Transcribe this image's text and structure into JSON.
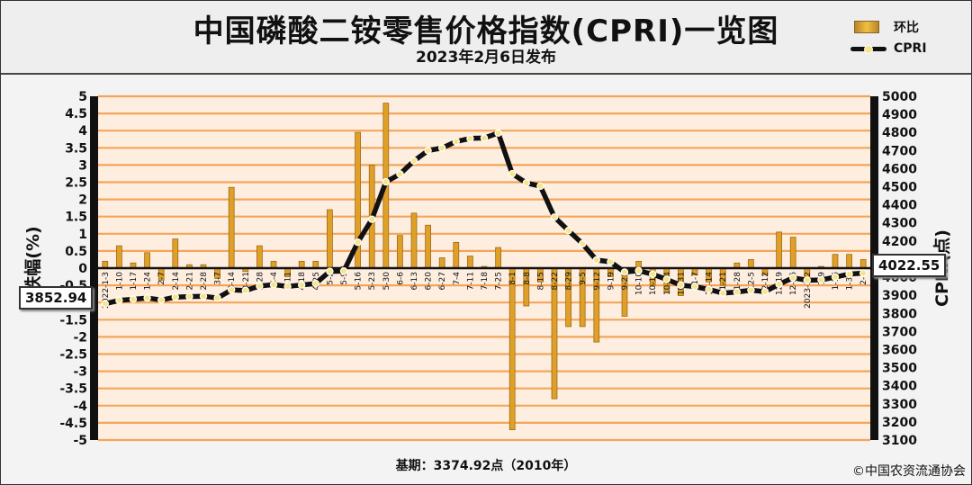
{
  "header": {
    "title": "中国磷酸二铵零售价格指数(CPRI)一览图",
    "subtitle": "2023年2月6日发布"
  },
  "legend": {
    "bar_label": "环比",
    "line_label": "CPRI"
  },
  "footer": {
    "base": "基期：3374.92点（2010年）",
    "copyright": "©中国农资流通协会"
  },
  "callouts": {
    "first_value": "3852.94",
    "last_value": "4022.55"
  },
  "colors": {
    "bar": "#e0a028",
    "line": "#111111",
    "marker": "#f7e58a",
    "grid": "#f4a55a",
    "plot_bg": "#fdeee0"
  },
  "chart_data": {
    "type": "bar",
    "title": "中国磷酸二铵零售价格指数(CPRI)一览图",
    "categories": [
      "2022-1-3",
      "1-10",
      "1-17",
      "1-24",
      "2-7",
      "2-14",
      "2-21",
      "2-28",
      "3-7",
      "3-14",
      "3-21",
      "3-28",
      "4-4",
      "4-11",
      "4-18",
      "4-25",
      "5-2",
      "5-9",
      "5-16",
      "5-23",
      "5-30",
      "6-6",
      "6-13",
      "6-20",
      "6-27",
      "7-4",
      "7-11",
      "7-18",
      "7-25",
      "8-1",
      "8-8",
      "8-15",
      "8-22",
      "8-29",
      "9-5",
      "9-12",
      "9-19",
      "9-26",
      "10-10",
      "10-17",
      "10-24",
      "10-31",
      "11-7",
      "11-14",
      "11-21",
      "11-28",
      "12-5",
      "12-12",
      "12-19",
      "12-26",
      "2023-1-2",
      "1-9",
      "1-16",
      "1-30",
      "2-6"
    ],
    "series": [
      {
        "name": "环比",
        "type": "bar",
        "axis": "left",
        "values": [
          0.2,
          0.65,
          0.15,
          0.45,
          -0.35,
          0.85,
          0.1,
          0.1,
          -0.3,
          2.35,
          -0.1,
          0.65,
          0.2,
          -0.25,
          0.2,
          0.2,
          1.7,
          0.05,
          3.95,
          3.0,
          4.8,
          0.95,
          1.6,
          1.25,
          0.3,
          0.75,
          0.35,
          0.05,
          0.6,
          -4.7,
          -1.1,
          -0.4,
          -3.8,
          -1.7,
          -1.7,
          -2.15,
          -0.25,
          -1.4,
          0.2,
          -0.5,
          -0.7,
          -0.8,
          -0.2,
          -0.4,
          -0.5,
          0.15,
          0.25,
          -0.2,
          1.05,
          0.9,
          -0.35,
          0.05,
          0.4,
          0.4,
          0.25
        ]
      },
      {
        "name": "CPRI",
        "type": "line",
        "axis": "right",
        "values": [
          3853,
          3872,
          3878,
          3885,
          3874,
          3890,
          3893,
          3895,
          3885,
          3930,
          3926,
          3951,
          3959,
          3949,
          3957,
          3965,
          4032,
          4034,
          4193,
          4320,
          4527,
          4570,
          4643,
          4700,
          4714,
          4750,
          4767,
          4769,
          4797,
          4572,
          4521,
          4503,
          4332,
          4258,
          4185,
          4095,
          4085,
          4028,
          4036,
          4016,
          3988,
          3956,
          3948,
          3932,
          3912,
          3918,
          3928,
          3920,
          3961,
          3997,
          3983,
          3985,
          4001,
          4017,
          4022.55
        ]
      }
    ],
    "ylabel": "涨跌幅(%)",
    "y2label": "CPRI(点)",
    "ylim": [
      -5,
      5
    ],
    "y2lim": [
      3100,
      5000
    ],
    "yticks": [
      -5,
      -4.5,
      -4,
      -3.5,
      -3,
      -2.5,
      -2,
      -1.5,
      -1,
      -0.5,
      0,
      0.5,
      1,
      1.5,
      2,
      2.5,
      3,
      3.5,
      4,
      4.5,
      5
    ],
    "y2ticks": [
      3100,
      3200,
      3300,
      3400,
      3500,
      3600,
      3700,
      3800,
      3900,
      4000,
      4100,
      4200,
      4300,
      4400,
      4500,
      4600,
      4700,
      4800,
      4900,
      5000
    ],
    "grid": true,
    "legend_position": "top-right"
  }
}
